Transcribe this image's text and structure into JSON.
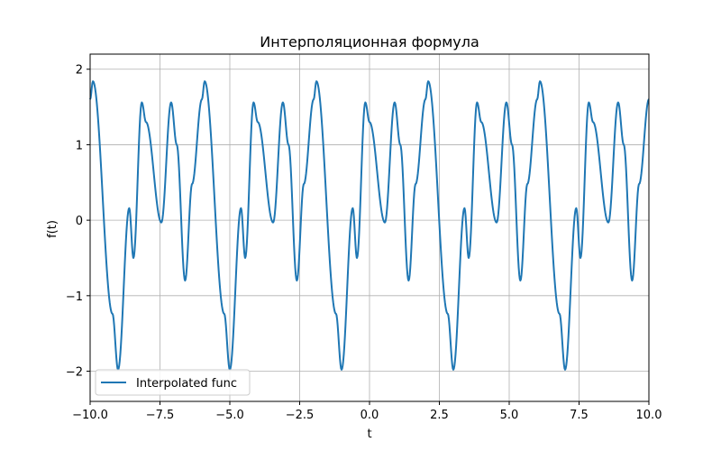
{
  "chart_data": {
    "type": "line",
    "title": "Интерполяционная формула",
    "xlabel": "t",
    "ylabel": "f(t)",
    "xlim": [
      -10,
      10
    ],
    "ylim": [
      -2.4,
      2.2
    ],
    "xticks": [
      -10,
      -7.5,
      -5,
      -2.5,
      0,
      2.5,
      5,
      7.5,
      10
    ],
    "xtick_labels": [
      "−10.0",
      "−7.5",
      "−5.0",
      "−2.5",
      "0.0",
      "2.5",
      "5.0",
      "7.5",
      "10.0"
    ],
    "yticks": [
      -2,
      -1,
      0,
      1,
      2
    ],
    "ytick_labels": [
      "−2",
      "−1",
      "0",
      "1",
      "2"
    ],
    "grid": true,
    "legend_position": "lower-left",
    "series": [
      {
        "name": "Interpolated func",
        "color": "#1f77b4",
        "period": 4,
        "x": [
          -2,
          -1.9,
          -1.2,
          -1.0,
          -0.6,
          -0.45,
          -0.15,
          0,
          0.55,
          0.9,
          1.1,
          1.4,
          1.65,
          2
        ],
        "y": [
          1.6,
          1.84,
          -1.24,
          -1.98,
          0.16,
          -0.5,
          1.56,
          1.3,
          -0.03,
          1.56,
          1.0,
          -0.8,
          0.48,
          1.6
        ]
      }
    ]
  }
}
